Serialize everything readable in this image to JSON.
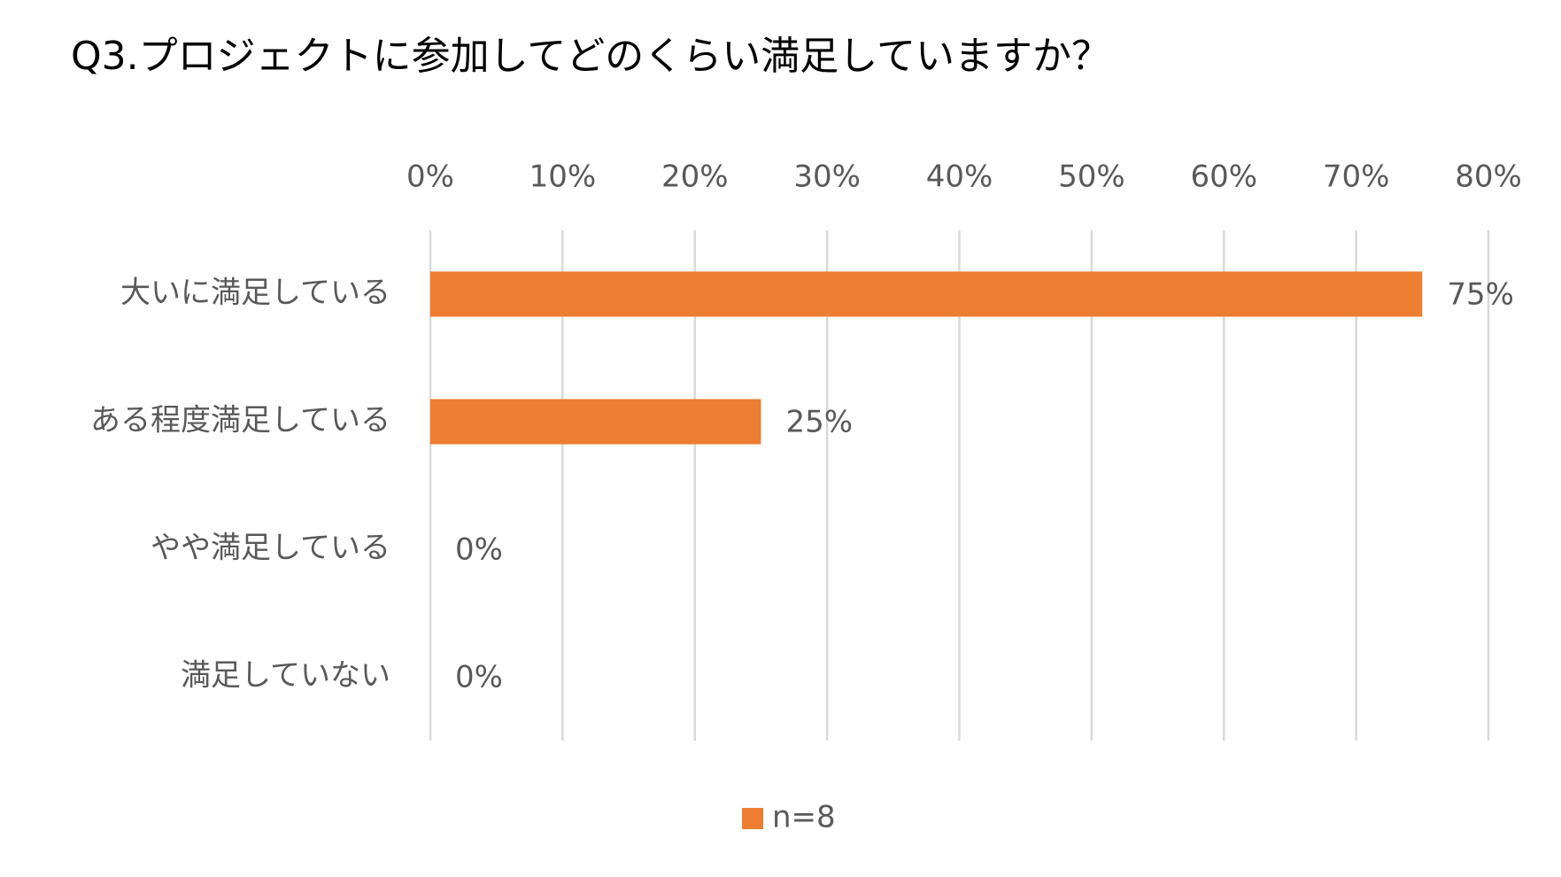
{
  "chart_data": {
    "type": "bar",
    "orientation": "horizontal",
    "title": "Q3.プロジェクトに参加してどのくらい満足していますか？",
    "categories": [
      "大いに満足している",
      "ある程度満足している",
      "やや満足している",
      "満足していない"
    ],
    "series": [
      {
        "name": "n=8",
        "color": "#ed7d31",
        "values": [
          75,
          25,
          0,
          0
        ],
        "value_labels": [
          "75%",
          "25%",
          "0%",
          "0%"
        ]
      }
    ],
    "xlim": [
      0,
      80
    ],
    "xticks": [
      {
        "value": 0,
        "label": "0%"
      },
      {
        "value": 10,
        "label": "10%"
      },
      {
        "value": 20,
        "label": "20%"
      },
      {
        "value": 30,
        "label": "30%"
      },
      {
        "value": 40,
        "label": "40%"
      },
      {
        "value": 50,
        "label": "50%"
      },
      {
        "value": 60,
        "label": "60%"
      },
      {
        "value": 70,
        "label": "70%"
      },
      {
        "value": 80,
        "label": "80%"
      }
    ],
    "grid": true,
    "legend": "bottom"
  }
}
